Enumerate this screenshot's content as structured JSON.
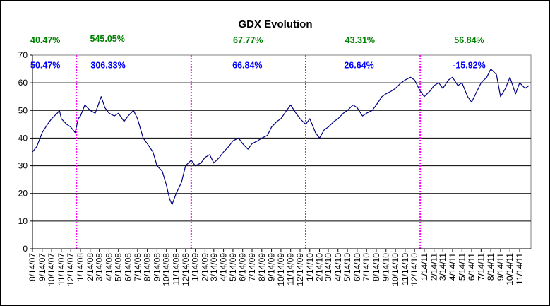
{
  "chart_data": {
    "type": "line",
    "title": "GDX Evolution",
    "xlabel": "",
    "ylabel": "",
    "ylim": [
      0,
      70
    ],
    "y_ticks": [
      "0",
      "10",
      "20",
      "30",
      "40",
      "50",
      "60",
      "70"
    ],
    "grid": true,
    "legend": "none",
    "x_tick_labels": [
      "8/14/07",
      "9/14/07",
      "10/14/07",
      "11/14/07",
      "12/14/07",
      "1/14/08",
      "2/14/08",
      "3/14/08",
      "4/14/08",
      "5/14/08",
      "6/14/08",
      "7/14/08",
      "8/14/08",
      "9/14/08",
      "10/14/08",
      "11/14/08",
      "12/14/08",
      "1/14/09",
      "2/14/09",
      "3/14/09",
      "4/14/09",
      "5/14/09",
      "6/14/09",
      "7/14/09",
      "8/14/09",
      "9/14/09",
      "10/14/09",
      "11/14/09",
      "12/14/09",
      "1/14/10",
      "2/14/10",
      "3/14/10",
      "4/14/10",
      "5/14/10",
      "6/14/10",
      "7/14/10",
      "8/14/10",
      "9/14/10",
      "10/14/10",
      "11/14/10",
      "12/14/10",
      "1/14/11",
      "2/14/11",
      "3/14/11",
      "4/14/11",
      "5/14/11",
      "6/14/11",
      "7/14/11",
      "8/14/11",
      "9/14/11",
      "10/14/11",
      "11/14/11"
    ],
    "series": [
      {
        "color": "#000080",
        "x": [
          "2007-08-14",
          "2007-08-28",
          "2007-09-14",
          "2007-10-01",
          "2007-10-14",
          "2007-11-01",
          "2007-11-08",
          "2007-11-14",
          "2007-12-01",
          "2007-12-14",
          "2007-12-28",
          "2008-01-07",
          "2008-01-14",
          "2008-01-28",
          "2008-02-14",
          "2008-03-01",
          "2008-03-14",
          "2008-03-20",
          "2008-04-01",
          "2008-04-14",
          "2008-05-01",
          "2008-05-14",
          "2008-06-01",
          "2008-06-14",
          "2008-07-01",
          "2008-07-14",
          "2008-08-01",
          "2008-08-14",
          "2008-09-01",
          "2008-09-14",
          "2008-10-01",
          "2008-10-14",
          "2008-10-24",
          "2008-11-01",
          "2008-11-14",
          "2008-12-01",
          "2008-12-14",
          "2009-01-01",
          "2009-01-14",
          "2009-02-01",
          "2009-02-14",
          "2009-03-01",
          "2009-03-14",
          "2009-04-01",
          "2009-04-14",
          "2009-05-01",
          "2009-05-14",
          "2009-06-01",
          "2009-06-14",
          "2009-07-01",
          "2009-07-14",
          "2009-08-01",
          "2009-08-14",
          "2009-09-01",
          "2009-09-14",
          "2009-10-01",
          "2009-10-14",
          "2009-11-01",
          "2009-11-14",
          "2009-12-01",
          "2009-12-14",
          "2010-01-01",
          "2010-01-14",
          "2010-02-01",
          "2010-02-14",
          "2010-03-01",
          "2010-03-14",
          "2010-04-01",
          "2010-04-14",
          "2010-05-01",
          "2010-05-14",
          "2010-06-01",
          "2010-06-14",
          "2010-07-01",
          "2010-07-14",
          "2010-08-01",
          "2010-08-14",
          "2010-09-01",
          "2010-09-14",
          "2010-10-01",
          "2010-10-14",
          "2010-11-01",
          "2010-11-14",
          "2010-12-01",
          "2010-12-14",
          "2011-01-01",
          "2011-01-14",
          "2011-02-01",
          "2011-02-14",
          "2011-03-01",
          "2011-03-14",
          "2011-04-01",
          "2011-04-14",
          "2011-05-01",
          "2011-05-14",
          "2011-06-01",
          "2011-06-14",
          "2011-07-01",
          "2011-07-14",
          "2011-08-01",
          "2011-08-14",
          "2011-09-01",
          "2011-09-14",
          "2011-09-30",
          "2011-10-14",
          "2011-11-01",
          "2011-11-14",
          "2011-12-01",
          "2011-12-14"
        ],
        "values": [
          35,
          37,
          42,
          45,
          47,
          49,
          50,
          47,
          45,
          44,
          42,
          47,
          48,
          52,
          50,
          49,
          53,
          55,
          51,
          49,
          48,
          49,
          46,
          48,
          50,
          47,
          40,
          38,
          35,
          30,
          28,
          23,
          18,
          16,
          20,
          24,
          30,
          32,
          30,
          31,
          33,
          34,
          31,
          33,
          35,
          37,
          39,
          40,
          38,
          36,
          38,
          39,
          40,
          41,
          44,
          46,
          47,
          50,
          52,
          49,
          47,
          45,
          47,
          42,
          40,
          43,
          44,
          46,
          47,
          49,
          50,
          52,
          51,
          48,
          49,
          50,
          52,
          55,
          56,
          57,
          58,
          60,
          61,
          62,
          61,
          57,
          55,
          57,
          59,
          60,
          58,
          61,
          62,
          59,
          60,
          55,
          53,
          57,
          60,
          62,
          65,
          63,
          55,
          58,
          62,
          56,
          60,
          58,
          59
        ]
      }
    ],
    "annotations": [
      {
        "text": "40.47%",
        "date": "2007-09-24",
        "y": 74.3,
        "color": "green"
      },
      {
        "text": "50.47%",
        "date": "2007-09-24",
        "y": 65.3,
        "color": "blue"
      },
      {
        "text": "545.05%",
        "date": "2008-04-09",
        "y": 74.9,
        "color": "green"
      },
      {
        "text": "306.33%",
        "date": "2008-04-11",
        "y": 65.3,
        "color": "blue"
      },
      {
        "text": "67.77%",
        "date": "2009-07-01",
        "y": 74.3,
        "color": "green"
      },
      {
        "text": "66.84%",
        "date": "2009-06-29",
        "y": 65.3,
        "color": "blue"
      },
      {
        "text": "43.31%",
        "date": "2010-06-23",
        "y": 74.3,
        "color": "green"
      },
      {
        "text": "26.64%",
        "date": "2010-06-20",
        "y": 65.3,
        "color": "blue"
      },
      {
        "text": "56.84%",
        "date": "2011-06-06",
        "y": 74.3,
        "color": "green"
      },
      {
        "text": "-15.92%",
        "date": "2011-06-06",
        "y": 65.3,
        "color": "blue"
      }
    ],
    "year_dividers": [
      "2008-01-01",
      "2009-01-01",
      "2010-01-01",
      "2011-01-01"
    ],
    "divider_color": "#ff00ff"
  }
}
